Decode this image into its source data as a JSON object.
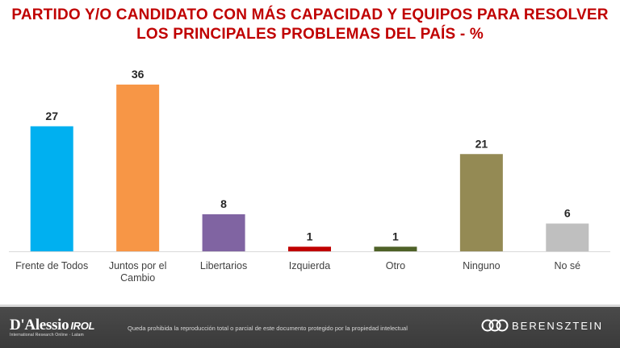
{
  "title": {
    "line1": "PARTIDO Y/O CANDIDATO CON MÁS CAPACIDAD Y EQUIPOS PARA RESOLVER",
    "line2": "LOS PRINCIPALES PROBLEMAS DEL PAÍS - %"
  },
  "chart_data": {
    "type": "bar",
    "title": "PARTIDO Y/O CANDIDATO CON MÁS CAPACIDAD Y EQUIPOS PARA RESOLVER LOS PRINCIPALES PROBLEMAS DEL PAÍS - %",
    "categories": [
      [
        "Frente de Todos"
      ],
      [
        "Juntos por el",
        "Cambio"
      ],
      [
        "Libertarios"
      ],
      [
        "Izquierda"
      ],
      [
        "Otro"
      ],
      [
        "Ninguno"
      ],
      [
        "No sé"
      ]
    ],
    "values": [
      27,
      36,
      8,
      1,
      1,
      21,
      6
    ],
    "colors": [
      "#00b0f0",
      "#f79646",
      "#8064a2",
      "#c00000",
      "#4f6228",
      "#948a54",
      "#bfbfbf"
    ],
    "ylim": [
      0,
      36
    ],
    "grid": false,
    "legend": "none"
  },
  "footer": {
    "brand_left": "D'Alessio",
    "brand_left_suffix": "IROL",
    "brand_left_tagline": "International Research Online · Latam",
    "disclaimer": "Queda prohibida la reproducción total o parcial de este documento protegido por la propiedad intelectual",
    "brand_right": "BERENSZTEIN"
  }
}
